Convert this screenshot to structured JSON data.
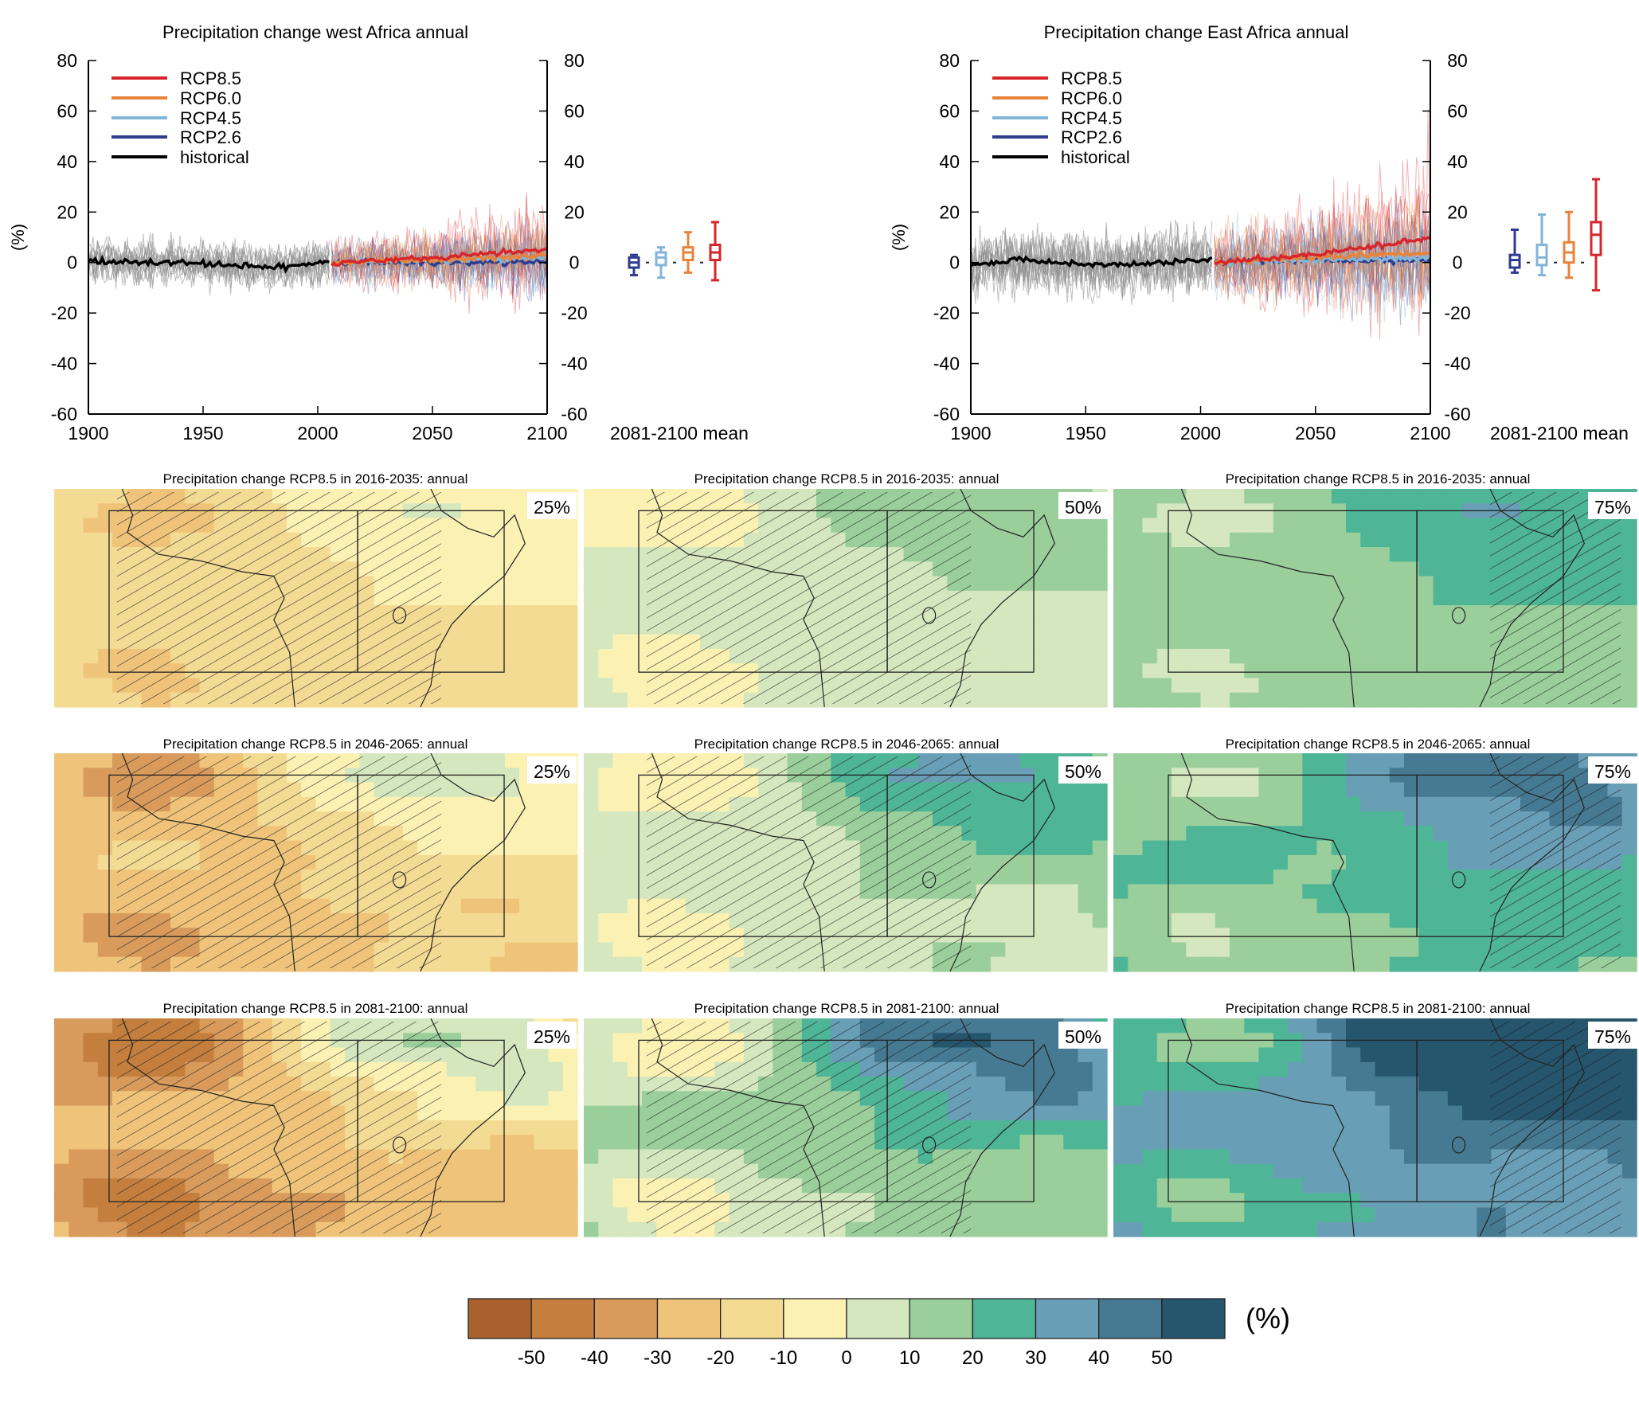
{
  "colors": {
    "rcp85": "#d7262b",
    "rcp60": "#e8833a",
    "rcp45": "#82b5d9",
    "rcp26": "#2d3d8e",
    "historical": "#000000",
    "ensemble_historical": "#8c8c8c"
  },
  "chart_data": [
    {
      "type": "line",
      "title": "Precipitation change west Africa annual",
      "ylabel": "(%)",
      "xlim": [
        1900,
        2100
      ],
      "ylim": [
        -60,
        80
      ],
      "xticks": [
        1900,
        1950,
        2000,
        2050,
        2100
      ],
      "yticks": [
        80,
        60,
        40,
        20,
        0,
        -20,
        -40,
        -60
      ],
      "legend": {
        "placement": "top-left",
        "entries": [
          "RCP8.5",
          "RCP6.0",
          "RCP4.5",
          "RCP2.6",
          "historical"
        ]
      },
      "series": [
        {
          "name": "historical",
          "x": [
            1900,
            1920,
            1940,
            1960,
            1980,
            2005
          ],
          "values": [
            1,
            0,
            0,
            -1,
            -2,
            0
          ]
        },
        {
          "name": "RCP2.6",
          "x": [
            2006,
            2050,
            2100
          ],
          "values": [
            0,
            0,
            0
          ]
        },
        {
          "name": "RCP4.5",
          "x": [
            2006,
            2050,
            2100
          ],
          "values": [
            0,
            1,
            2
          ]
        },
        {
          "name": "RCP6.0",
          "x": [
            2006,
            2050,
            2100
          ],
          "values": [
            0,
            1,
            3
          ]
        },
        {
          "name": "RCP8.5",
          "x": [
            2006,
            2050,
            2100
          ],
          "values": [
            0,
            2,
            5
          ]
        }
      ],
      "boxplot": {
        "label": "2081-2100 mean",
        "boxes": [
          {
            "name": "RCP2.6",
            "whisker_low": -5,
            "q1": -2,
            "median": 0,
            "q3": 2,
            "whisker_high": 3
          },
          {
            "name": "RCP4.5",
            "whisker_low": -6,
            "q1": -1,
            "median": 2,
            "q3": 4,
            "whisker_high": 6
          },
          {
            "name": "RCP6.0",
            "whisker_low": -4,
            "q1": 1,
            "median": 4,
            "q3": 6,
            "whisker_high": 12
          },
          {
            "name": "RCP8.5",
            "whisker_low": -7,
            "q1": 1,
            "median": 4,
            "q3": 7,
            "whisker_high": 16
          }
        ]
      }
    },
    {
      "type": "line",
      "title": "Precipitation change East Africa annual",
      "ylabel": "(%)",
      "xlim": [
        1900,
        2100
      ],
      "ylim": [
        -60,
        80
      ],
      "xticks": [
        1900,
        1950,
        2000,
        2050,
        2100
      ],
      "yticks": [
        80,
        60,
        40,
        20,
        0,
        -20,
        -40,
        -60
      ],
      "legend": {
        "placement": "top-left",
        "entries": [
          "RCP8.5",
          "RCP6.0",
          "RCP4.5",
          "RCP2.6",
          "historical"
        ]
      },
      "series": [
        {
          "name": "historical",
          "x": [
            1900,
            1920,
            1940,
            1960,
            1980,
            2005
          ],
          "values": [
            -1,
            1,
            0,
            -1,
            0,
            1
          ]
        },
        {
          "name": "RCP2.6",
          "x": [
            2006,
            2050,
            2100
          ],
          "values": [
            0,
            1,
            1
          ]
        },
        {
          "name": "RCP4.5",
          "x": [
            2006,
            2050,
            2100
          ],
          "values": [
            0,
            1,
            2
          ]
        },
        {
          "name": "RCP6.0",
          "x": [
            2006,
            2050,
            2100
          ],
          "values": [
            0,
            2,
            4
          ]
        },
        {
          "name": "RCP8.5",
          "x": [
            2006,
            2050,
            2100
          ],
          "values": [
            0,
            3,
            10
          ]
        }
      ],
      "boxplot": {
        "label": "2081-2100 mean",
        "boxes": [
          {
            "name": "RCP2.6",
            "whisker_low": -4,
            "q1": -2,
            "median": 1,
            "q3": 3,
            "whisker_high": 13
          },
          {
            "name": "RCP4.5",
            "whisker_low": -5,
            "q1": -1,
            "median": 2,
            "q3": 7,
            "whisker_high": 19
          },
          {
            "name": "RCP6.0",
            "whisker_low": -6,
            "q1": 0,
            "median": 4,
            "q3": 8,
            "whisker_high": 20
          },
          {
            "name": "RCP8.5",
            "whisker_low": -11,
            "q1": 3,
            "median": 11,
            "q3": 16,
            "whisker_high": 33
          }
        ]
      }
    },
    {
      "type": "heatmap",
      "maps": [
        {
          "title": "Precipitation change RCP8.5 in 2016-2035: annual",
          "percentile": "25%"
        },
        {
          "title": "Precipitation change RCP8.5 in 2016-2035: annual",
          "percentile": "50%"
        },
        {
          "title": "Precipitation change RCP8.5 in 2016-2035: annual",
          "percentile": "75%"
        },
        {
          "title": "Precipitation change RCP8.5 in 2046-2065: annual",
          "percentile": "25%"
        },
        {
          "title": "Precipitation change RCP8.5 in 2046-2065: annual",
          "percentile": "50%"
        },
        {
          "title": "Precipitation change RCP8.5 in 2046-2065: annual",
          "percentile": "75%"
        },
        {
          "title": "Precipitation change RCP8.5 in 2081-2100: annual",
          "percentile": "25%"
        },
        {
          "title": "Precipitation change RCP8.5 in 2081-2100: annual",
          "percentile": "50%"
        },
        {
          "title": "Precipitation change RCP8.5 in 2081-2100: annual",
          "percentile": "75%"
        }
      ],
      "colorbar": {
        "unit": "(%)",
        "ticks": [
          "-50",
          "-40",
          "-30",
          "-20",
          "-10",
          "0",
          "10",
          "20",
          "30",
          "40",
          "50"
        ],
        "colors": [
          "#a9622e",
          "#c47f3e",
          "#d89b5c",
          "#efc47a",
          "#f4db94",
          "#fbf1b3",
          "#d5e7bf",
          "#9acf9c",
          "#4fb597",
          "#699fb6",
          "#467a92",
          "#26566e"
        ]
      }
    }
  ]
}
